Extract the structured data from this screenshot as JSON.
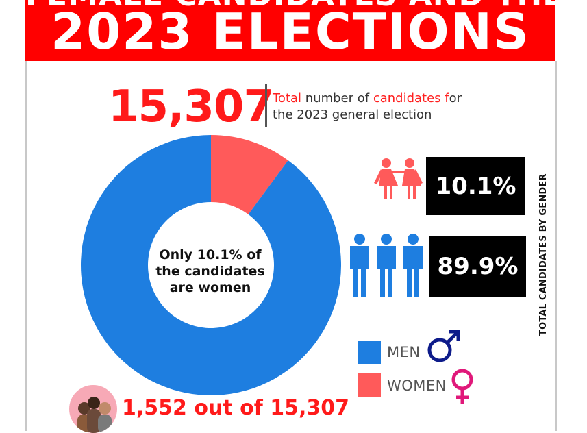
{
  "banner": {
    "line1": "FEMALE CANDIDATES AND THE",
    "line2": "2023 ELECTIONS"
  },
  "headline": {
    "number": "15,307",
    "desc_part1_red": "Total",
    "desc_part1_rest": " number of ",
    "desc_part2_red": "candidates f",
    "desc_part2_rest": "or",
    "desc_line2": "the 2023 general election"
  },
  "center_text": {
    "line1": "Only 10.1%  of",
    "line2": "the candidates",
    "line3": "are women"
  },
  "stats": {
    "women_pct": "10.1%",
    "men_pct": "89.9%",
    "side_label": "TOTAL CANDIDATES BY GENDER"
  },
  "legend": {
    "men_label": "MEN",
    "women_label": "WOMEN"
  },
  "bottom": {
    "text": "1,552 out of 15,307"
  },
  "colors": {
    "men": "#1e7ee0",
    "women": "#ff5a5a",
    "accent_red": "#ff0000"
  },
  "icons": [
    "female-pair-icon",
    "male-trio-icon",
    "male-symbol-icon",
    "female-symbol-icon",
    "women-group-avatar"
  ],
  "chart_data": {
    "type": "pie",
    "style": "donut",
    "categories": [
      "Women",
      "Men"
    ],
    "values": [
      10.1,
      89.9
    ],
    "unit": "%",
    "colors": [
      "#ff5a5a",
      "#1e7ee0"
    ],
    "title": "",
    "legend": [
      "MEN",
      "WOMEN"
    ],
    "legend_placement": "bottom-right"
  }
}
